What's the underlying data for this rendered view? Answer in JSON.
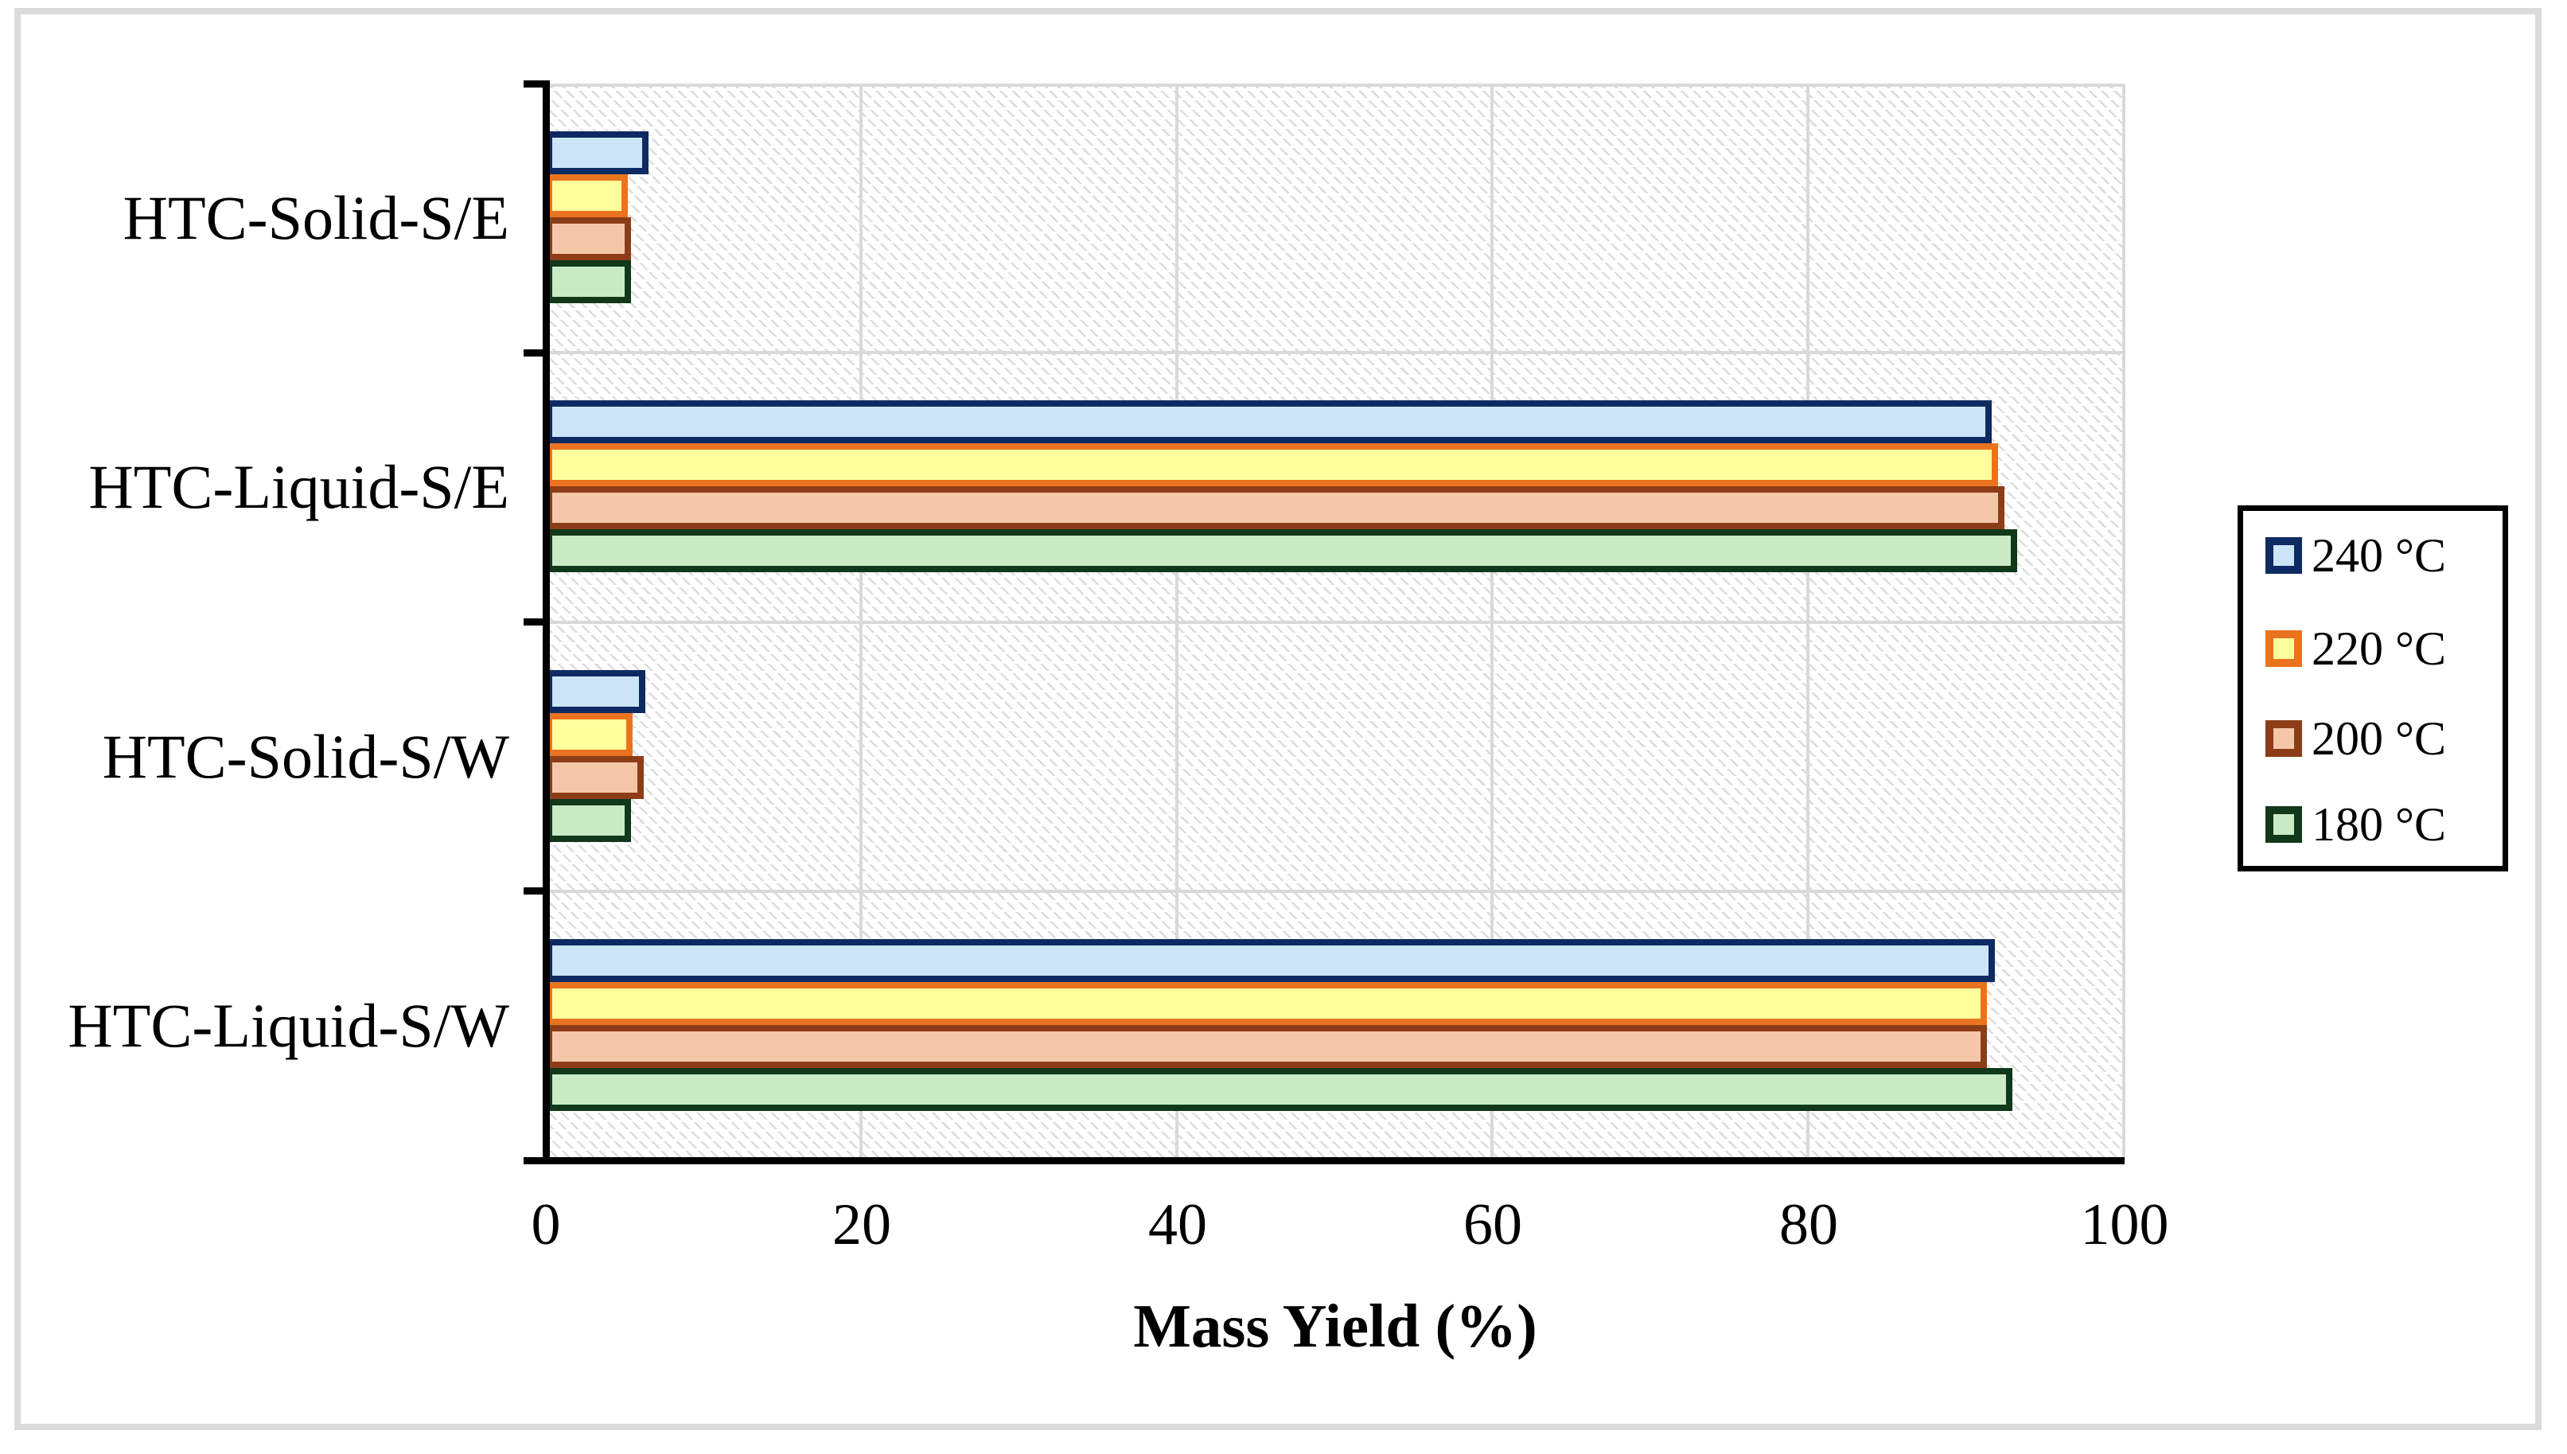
{
  "chart_data": {
    "type": "bar",
    "orientation": "horizontal",
    "title": "",
    "xlabel": "Mass Yield (%)",
    "ylabel": "",
    "xlim": [
      0,
      100
    ],
    "xticks": [
      0,
      20,
      40,
      60,
      80,
      100
    ],
    "grid": true,
    "legend_position": "right",
    "background_pattern": "diagonal-hatch",
    "categories": [
      "HTC-Solid-S/E",
      "HTC-Liquid-S/E",
      "HTC-Solid-S/W",
      "HTC-Liquid-S/W"
    ],
    "series": [
      {
        "name": "240 °C",
        "fill": "#cce5f6",
        "border": "#0e2a63",
        "values": [
          6.5,
          91.6,
          6.3,
          91.8
        ]
      },
      {
        "name": "220 °C",
        "fill": "#fffe9d",
        "border": "#e9731f",
        "values": [
          5.2,
          92.0,
          5.5,
          91.3
        ]
      },
      {
        "name": "200 °C",
        "fill": "#f4c7a9",
        "border": "#8c3d18",
        "values": [
          5.4,
          92.4,
          6.2,
          91.3
        ]
      },
      {
        "name": "180 °C",
        "fill": "#c9eac4",
        "border": "#12381a",
        "values": [
          5.4,
          93.2,
          5.4,
          92.9
        ]
      }
    ],
    "colors": {
      "gridline": "#d9d9d9",
      "axis": "#000000",
      "hatch": "#dcdcdc",
      "frame": "#dbdbdb",
      "text": "#000000"
    }
  }
}
